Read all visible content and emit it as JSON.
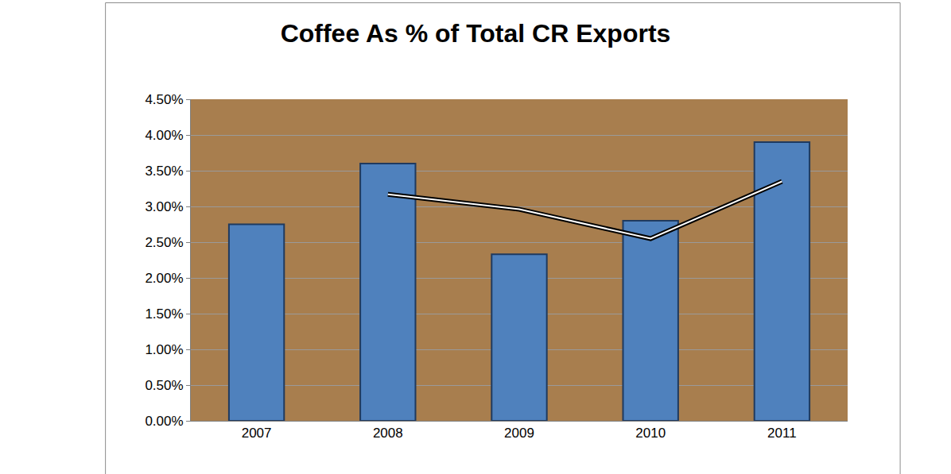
{
  "chart_data": {
    "type": "bar",
    "title": "Coffee As % of Total CR Exports",
    "categories": [
      "2007",
      "2008",
      "2009",
      "2010",
      "2011"
    ],
    "series": [
      {
        "type": "bar",
        "color": "#4f81bd",
        "values": [
          2.75,
          3.6,
          2.33,
          2.8,
          3.9
        ]
      },
      {
        "type": "line",
        "color": "#000000",
        "values": [
          null,
          3.17,
          2.96,
          2.55,
          3.35
        ]
      }
    ],
    "ylim": [
      0,
      4.5
    ],
    "yticks": [
      {
        "value": 0,
        "label": "0.00%"
      },
      {
        "value": 0.5,
        "label": "0.50%"
      },
      {
        "value": 1,
        "label": "1.00%"
      },
      {
        "value": 1.5,
        "label": "1.50%"
      },
      {
        "value": 2,
        "label": "2.00%"
      },
      {
        "value": 2.5,
        "label": "2.50%"
      },
      {
        "value": 3,
        "label": "3.00%"
      },
      {
        "value": 3.5,
        "label": "3.50%"
      },
      {
        "value": 4,
        "label": "4.00%"
      },
      {
        "value": 4.5,
        "label": "4.50%"
      }
    ],
    "grid": true
  }
}
